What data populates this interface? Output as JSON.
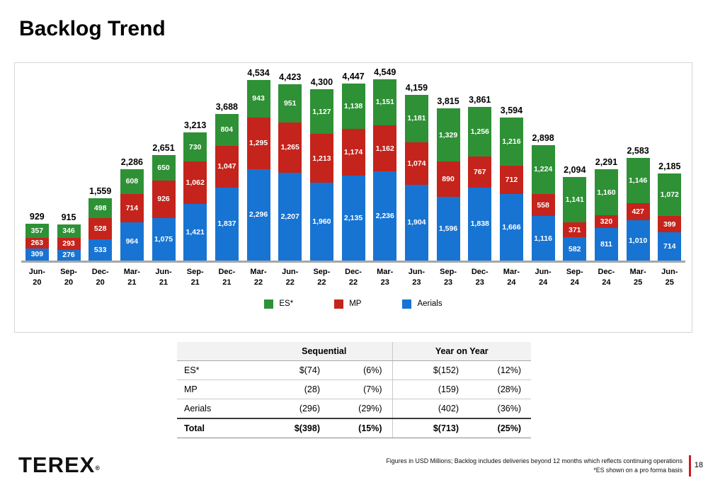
{
  "title": "Backlog Trend",
  "colors": {
    "es": "#2f9136",
    "mp": "#c4241c",
    "aerials": "#1874d2",
    "axis_line": "#a6a6a6",
    "page_accent": "#d01920"
  },
  "chart_data": {
    "type": "bar",
    "stacked": true,
    "title": "",
    "xlabel": "",
    "ylabel": "",
    "units": "USD Millions",
    "ylim": [
      0,
      4600
    ],
    "legend_position": "bottom",
    "categories": [
      "Jun-20",
      "Sep-20",
      "Dec-20",
      "Mar-21",
      "Jun-21",
      "Sep-21",
      "Dec-21",
      "Mar-22",
      "Jun-22",
      "Sep-22",
      "Dec-22",
      "Mar-23",
      "Jun-23",
      "Sep-23",
      "Dec-23",
      "Mar-24",
      "Jun-24",
      "Sep-24",
      "Dec-24",
      "Mar-25",
      "Jun-25"
    ],
    "series": [
      {
        "name": "ES*",
        "key": "es",
        "values": [
          357,
          346,
          498,
          608,
          650,
          730,
          804,
          943,
          951,
          1127,
          1138,
          1151,
          1181,
          1329,
          1256,
          1216,
          1224,
          1141,
          1160,
          1146,
          1072
        ]
      },
      {
        "name": "MP",
        "key": "mp",
        "values": [
          263,
          293,
          528,
          714,
          926,
          1062,
          1047,
          1295,
          1265,
          1213,
          1174,
          1162,
          1074,
          890,
          767,
          712,
          558,
          371,
          320,
          427,
          399
        ]
      },
      {
        "name": "Aerials",
        "key": "aerials",
        "values": [
          309,
          276,
          533,
          964,
          1075,
          1421,
          1837,
          2296,
          2207,
          1960,
          2135,
          2236,
          1904,
          1596,
          1838,
          1666,
          1116,
          582,
          811,
          1010,
          714
        ]
      }
    ],
    "totals": [
      929,
      915,
      1559,
      2286,
      2651,
      3213,
      3688,
      4534,
      4423,
      4300,
      4447,
      4549,
      4159,
      3815,
      3861,
      3594,
      2898,
      2094,
      2291,
      2583,
      2185
    ]
  },
  "table": {
    "group_headers": [
      "Sequential",
      "Year on Year"
    ],
    "rows": [
      {
        "label": "ES*",
        "seq_usd": "$(74)",
        "seq_pct": "(6%)",
        "yoy_usd": "$(152)",
        "yoy_pct": "(12%)"
      },
      {
        "label": "MP",
        "seq_usd": "(28)",
        "seq_pct": "(7%)",
        "yoy_usd": "(159)",
        "yoy_pct": "(28%)"
      },
      {
        "label": "Aerials",
        "seq_usd": "(296)",
        "seq_pct": "(29%)",
        "yoy_usd": "(402)",
        "yoy_pct": "(36%)"
      },
      {
        "label": "Total",
        "seq_usd": "$(398)",
        "seq_pct": "(15%)",
        "yoy_usd": "$(713)",
        "yoy_pct": "(25%)"
      }
    ]
  },
  "footer": {
    "logo_text": "TEREX",
    "logo_registered": "®",
    "note_line1": "Figures in USD Millions; Backlog includes deliveries beyond 12 months which reflects continuing operations",
    "note_line2": "*ES shown on a pro forma basis",
    "page_number": "18"
  }
}
